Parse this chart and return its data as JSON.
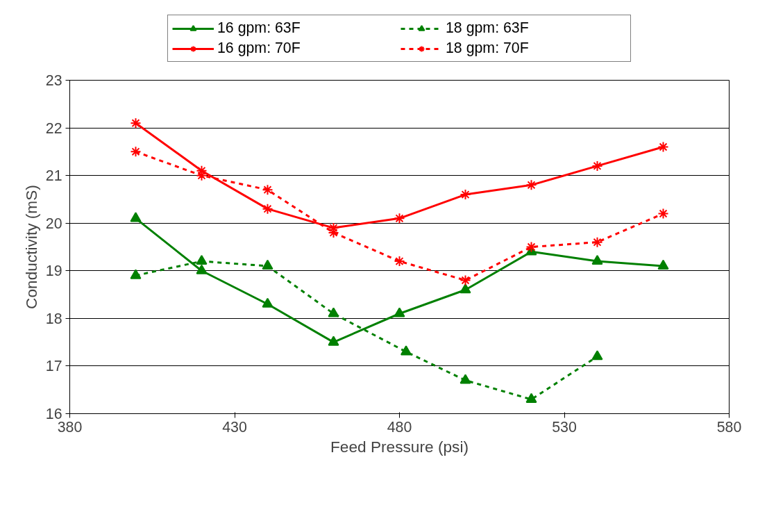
{
  "chart_data": {
    "type": "line",
    "xlabel": "Feed Pressure (psi)",
    "ylabel": "Conductivity (mS)",
    "xlim": [
      380,
      580
    ],
    "xticks": [
      380,
      430,
      480,
      530,
      580
    ],
    "ylim": [
      16,
      23
    ],
    "yticks": [
      16,
      17,
      18,
      19,
      20,
      21,
      22,
      23
    ],
    "grid": "y",
    "legend": "top",
    "series": [
      {
        "name": "16 gpm: 63F",
        "color": "#008000",
        "marker": "triangle",
        "line_style": "solid",
        "x": [
          400,
          420,
          440,
          460,
          480,
          500,
          520,
          540,
          560
        ],
        "values": [
          20.1,
          19.0,
          18.3,
          17.5,
          18.1,
          18.6,
          19.4,
          19.2,
          19.1
        ]
      },
      {
        "name": "16 gpm: 70F",
        "color": "#ff0000",
        "marker": "cross",
        "line_style": "solid",
        "x": [
          400,
          420,
          440,
          460,
          480,
          500,
          520,
          540,
          560
        ],
        "values": [
          22.1,
          21.1,
          20.3,
          19.9,
          20.1,
          20.6,
          20.8,
          21.2,
          21.6
        ]
      },
      {
        "name": "18 gpm: 63F",
        "color": "#008000",
        "marker": "triangle",
        "line_style": "dashed",
        "x": [
          400,
          420,
          440,
          460,
          482,
          500,
          520,
          540
        ],
        "values": [
          18.9,
          19.2,
          19.1,
          18.1,
          17.3,
          16.7,
          16.3,
          17.2
        ]
      },
      {
        "name": "18 gpm: 70F",
        "color": "#ff0000",
        "marker": "cross",
        "line_style": "dashed",
        "x": [
          400,
          420,
          440,
          460,
          480,
          500,
          520,
          540,
          560
        ],
        "values": [
          21.5,
          21.0,
          20.7,
          19.8,
          19.2,
          18.8,
          19.5,
          19.6,
          20.2
        ]
      }
    ]
  }
}
